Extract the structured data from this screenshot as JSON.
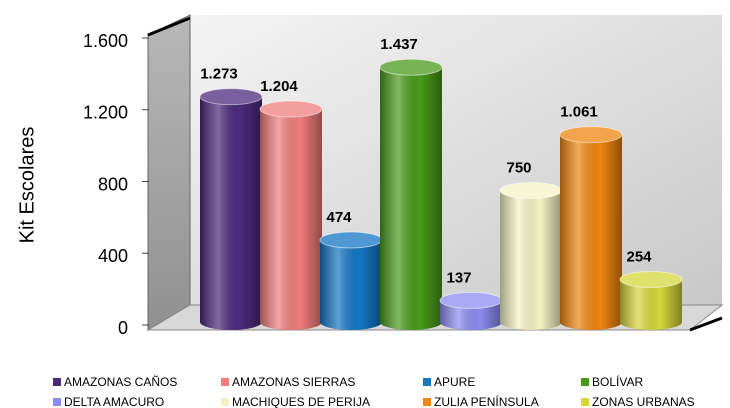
{
  "chart_data": {
    "type": "bar3d",
    "y_label": "Kit Escolares",
    "ylim": [
      0,
      1600
    ],
    "yticks": [
      0,
      400,
      800,
      {
        "value": 1200,
        "label": "1.200"
      },
      {
        "value": 1600,
        "label": "1.600"
      }
    ],
    "series": [
      {
        "name": "AMAZONAS CAÑOS",
        "color": "#4b2a7c",
        "values": [
          1273
        ],
        "value_labels": [
          "1.273"
        ]
      },
      {
        "name": "AMAZONAS SIERRAS",
        "color": "#f07c7c",
        "values": [
          1204
        ],
        "value_labels": [
          "1.204"
        ]
      },
      {
        "name": "APURE",
        "color": "#1576c4",
        "values": [
          474
        ]
      },
      {
        "name": "BOLÍVAR",
        "color": "#4a9a1c",
        "values": [
          1437
        ],
        "value_labels": [
          "1.437"
        ]
      },
      {
        "name": "DELTA AMACURO",
        "color": "#8c8cf0",
        "values": [
          137
        ]
      },
      {
        "name": "MACHIQUES DE PERIJA",
        "color": "#f4f2c4",
        "values": [
          750
        ]
      },
      {
        "name": "ZULIA PENÍNSULA",
        "color": "#ee8610",
        "values": [
          1061
        ],
        "value_labels": [
          "1.061"
        ]
      },
      {
        "name": "ZONAS URBANAS",
        "color": "#d6d63c",
        "values": [
          254
        ]
      }
    ]
  }
}
